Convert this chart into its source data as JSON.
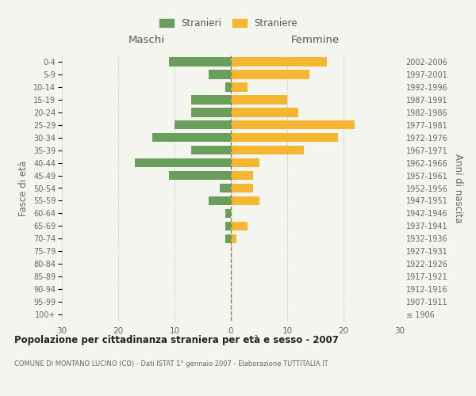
{
  "age_groups": [
    "100+",
    "95-99",
    "90-94",
    "85-89",
    "80-84",
    "75-79",
    "70-74",
    "65-69",
    "60-64",
    "55-59",
    "50-54",
    "45-49",
    "40-44",
    "35-39",
    "30-34",
    "25-29",
    "20-24",
    "15-19",
    "10-14",
    "5-9",
    "0-4"
  ],
  "birth_years": [
    "≤ 1906",
    "1907-1911",
    "1912-1916",
    "1917-1921",
    "1922-1926",
    "1927-1931",
    "1932-1936",
    "1937-1941",
    "1942-1946",
    "1947-1951",
    "1952-1956",
    "1957-1961",
    "1962-1966",
    "1967-1971",
    "1972-1976",
    "1977-1981",
    "1982-1986",
    "1987-1991",
    "1992-1996",
    "1997-2001",
    "2002-2006"
  ],
  "males": [
    0,
    0,
    0,
    0,
    0,
    0,
    1,
    1,
    1,
    4,
    2,
    11,
    17,
    7,
    14,
    10,
    7,
    7,
    1,
    4,
    11
  ],
  "females": [
    0,
    0,
    0,
    0,
    0,
    0,
    1,
    3,
    0,
    5,
    4,
    4,
    5,
    13,
    19,
    22,
    12,
    10,
    3,
    14,
    17
  ],
  "male_color": "#6a9e5b",
  "female_color": "#f5b731",
  "background_color": "#f5f5f0",
  "grid_color": "#cccccc",
  "dashed_line_color": "#888855",
  "xlim": 30,
  "title": "Popolazione per cittadinanza straniera per età e sesso - 2007",
  "subtitle": "COMUNE DI MONTANO LUCINO (CO) - Dati ISTAT 1° gennaio 2007 - Elaborazione TUTTITALIA.IT",
  "xlabel_left": "Maschi",
  "xlabel_right": "Femmine",
  "ylabel_left": "Fasce di età",
  "ylabel_right": "Anni di nascita",
  "legend_stranieri": "Stranieri",
  "legend_straniere": "Straniere"
}
